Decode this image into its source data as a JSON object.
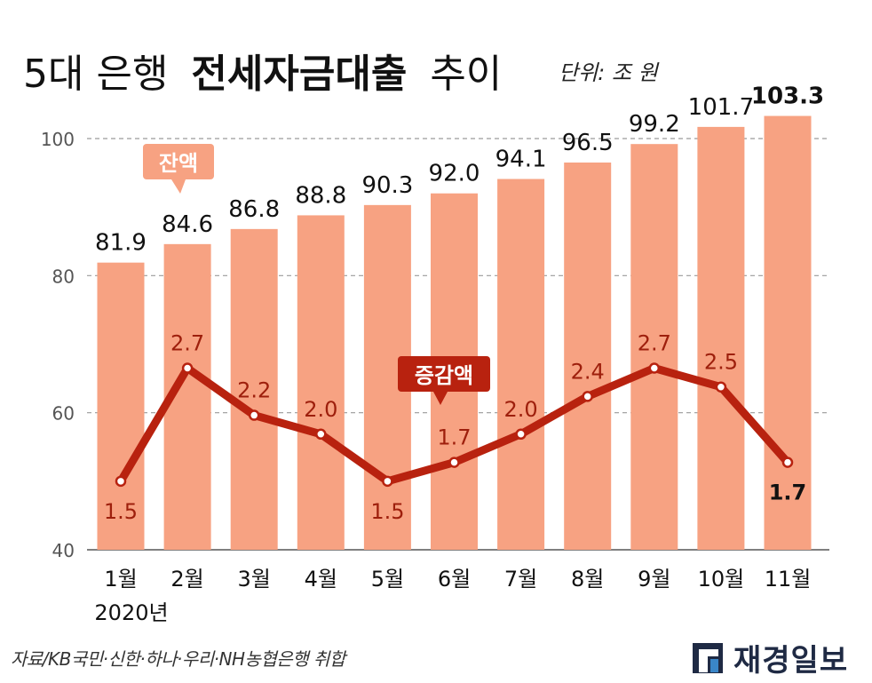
{
  "title": {
    "light": "5대 은행",
    "bold": "전세자금대출",
    "light_end": "추이"
  },
  "unit": "단위: 조 원",
  "source": "자료/KB국민·신한·하나·우리·NH농협은행 취합",
  "brand": "재경일보",
  "icons": {
    "brand_logo": "brand-logo-icon"
  },
  "chart_data": {
    "type": "bar",
    "categories": [
      "1월",
      "2월",
      "3월",
      "4월",
      "5월",
      "6월",
      "7월",
      "8월",
      "9월",
      "10월",
      "11월"
    ],
    "year_label": "2020년",
    "ylim": [
      40,
      105
    ],
    "yticks": [
      40,
      60,
      80,
      100
    ],
    "grid": true,
    "series": [
      {
        "name": "잔액",
        "type": "bar",
        "color": "#f7a282",
        "labels": [
          "81.9",
          "84.6",
          "86.8",
          "88.8",
          "90.3",
          "92.0",
          "94.1",
          "96.5",
          "99.2",
          "101.7",
          "103.3"
        ],
        "values": [
          81.9,
          84.6,
          86.8,
          88.8,
          90.3,
          92.0,
          94.1,
          96.5,
          99.2,
          101.7,
          103.3
        ],
        "highlight_last": true
      },
      {
        "name": "증감액",
        "type": "line",
        "color": "#b8220f",
        "labels": [
          "1.5",
          "2.7",
          "2.2",
          "2.0",
          "1.5",
          "1.7",
          "2.0",
          "2.4",
          "2.7",
          "2.5",
          "1.7"
        ],
        "values": [
          1.5,
          2.7,
          2.2,
          2.0,
          1.5,
          1.7,
          2.0,
          2.4,
          2.7,
          2.5,
          1.7
        ]
      }
    ]
  }
}
